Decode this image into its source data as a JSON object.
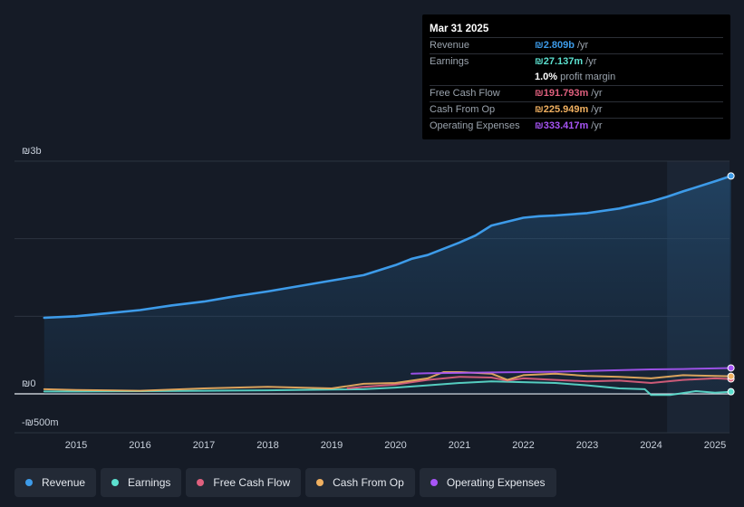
{
  "tooltip": {
    "date": "Mar 31 2025",
    "rows": [
      {
        "label": "Revenue",
        "value": "₪2.809b",
        "unit": "/yr",
        "color": "#3d9be9"
      },
      {
        "label": "Earnings",
        "value": "₪27.137m",
        "unit": "/yr",
        "color": "#5ce0cf"
      },
      {
        "label": "",
        "value": "1.0%",
        "unit": "profit margin",
        "color": "#ffffff"
      },
      {
        "label": "Free Cash Flow",
        "value": "₪191.793m",
        "unit": "/yr",
        "color": "#e0607e"
      },
      {
        "label": "Cash From Op",
        "value": "₪225.949m",
        "unit": "/yr",
        "color": "#f0b060"
      },
      {
        "label": "Operating Expenses",
        "value": "₪333.417m",
        "unit": "/yr",
        "color": "#a855f7"
      }
    ]
  },
  "legend": [
    {
      "label": "Revenue",
      "color": "#3d9be9"
    },
    {
      "label": "Earnings",
      "color": "#5ce0cf"
    },
    {
      "label": "Free Cash Flow",
      "color": "#e0607e"
    },
    {
      "label": "Cash From Op",
      "color": "#f0b060"
    },
    {
      "label": "Operating Expenses",
      "color": "#a855f7"
    }
  ],
  "chart_data": {
    "type": "area",
    "title": "",
    "y_unit": "ILS",
    "ylim": [
      -500,
      3000
    ],
    "y_tick_labels": [
      {
        "value": 3000,
        "label": "₪3b"
      },
      {
        "value": 0,
        "label": "₪0"
      },
      {
        "value": -500,
        "label": "-₪500m"
      }
    ],
    "x_tick_labels": [
      "2015",
      "2016",
      "2017",
      "2018",
      "2019",
      "2020",
      "2021",
      "2022",
      "2023",
      "2024",
      "2025"
    ],
    "x_tick_years": [
      2015,
      2016,
      2017,
      2018,
      2019,
      2020,
      2021,
      2022,
      2023,
      2024,
      2025
    ],
    "xlim": [
      2014.5,
      2025.25
    ],
    "forecast_region_start": 2024.25,
    "series": [
      {
        "name": "Revenue",
        "color": "#3d9be9",
        "fill": true,
        "x": [
          2014.5,
          2015.0,
          2015.5,
          2016.0,
          2016.5,
          2017.0,
          2017.5,
          2018.0,
          2018.5,
          2019.0,
          2019.5,
          2020.0,
          2020.25,
          2020.5,
          2021.0,
          2021.25,
          2021.5,
          2022.0,
          2022.25,
          2022.5,
          2023.0,
          2023.5,
          2024.0,
          2024.25,
          2024.5,
          2025.0,
          2025.25
        ],
        "values": [
          980,
          1000,
          1040,
          1080,
          1140,
          1190,
          1260,
          1320,
          1390,
          1460,
          1530,
          1660,
          1740,
          1790,
          1950,
          2040,
          2170,
          2270,
          2290,
          2300,
          2330,
          2390,
          2480,
          2540,
          2610,
          2740,
          2809
        ]
      },
      {
        "name": "Earnings",
        "color": "#5ce0cf",
        "fill": false,
        "x": [
          2014.5,
          2015.0,
          2016.0,
          2017.0,
          2018.0,
          2019.0,
          2019.5,
          2020.0,
          2020.5,
          2021.0,
          2021.5,
          2022.0,
          2022.5,
          2023.0,
          2023.5,
          2023.9,
          2024.0,
          2024.3,
          2024.7,
          2025.0,
          2025.25
        ],
        "values": [
          30,
          30,
          35,
          40,
          45,
          55,
          60,
          80,
          110,
          140,
          160,
          150,
          140,
          110,
          70,
          60,
          -15,
          -15,
          35,
          15,
          27
        ]
      },
      {
        "name": "Free Cash Flow",
        "color": "#e0607e",
        "fill": false,
        "x": [
          2019.25,
          2019.5,
          2020.0,
          2020.5,
          2021.0,
          2021.5,
          2021.75,
          2022.0,
          2022.5,
          2023.0,
          2023.5,
          2024.0,
          2024.5,
          2025.0,
          2025.25
        ],
        "values": [
          70,
          90,
          120,
          180,
          220,
          210,
          170,
          200,
          180,
          160,
          170,
          140,
          180,
          200,
          192
        ]
      },
      {
        "name": "Cash From Op",
        "color": "#f0b060",
        "fill": false,
        "x": [
          2014.5,
          2015.0,
          2016.0,
          2017.0,
          2018.0,
          2018.5,
          2019.0,
          2019.5,
          2020.0,
          2020.5,
          2020.75,
          2021.0,
          2021.5,
          2021.75,
          2022.0,
          2022.5,
          2023.0,
          2023.5,
          2024.0,
          2024.5,
          2025.0,
          2025.25
        ],
        "values": [
          60,
          50,
          40,
          70,
          90,
          80,
          70,
          130,
          140,
          200,
          280,
          280,
          260,
          180,
          240,
          260,
          230,
          220,
          200,
          240,
          230,
          226
        ]
      },
      {
        "name": "Operating Expenses",
        "color": "#a855f7",
        "fill": false,
        "x": [
          2020.25,
          2020.5,
          2021.0,
          2021.5,
          2022.0,
          2022.5,
          2023.0,
          2023.5,
          2024.0,
          2024.5,
          2025.0,
          2025.25
        ],
        "values": [
          260,
          265,
          270,
          275,
          280,
          285,
          295,
          305,
          315,
          320,
          328,
          333
        ]
      }
    ]
  }
}
